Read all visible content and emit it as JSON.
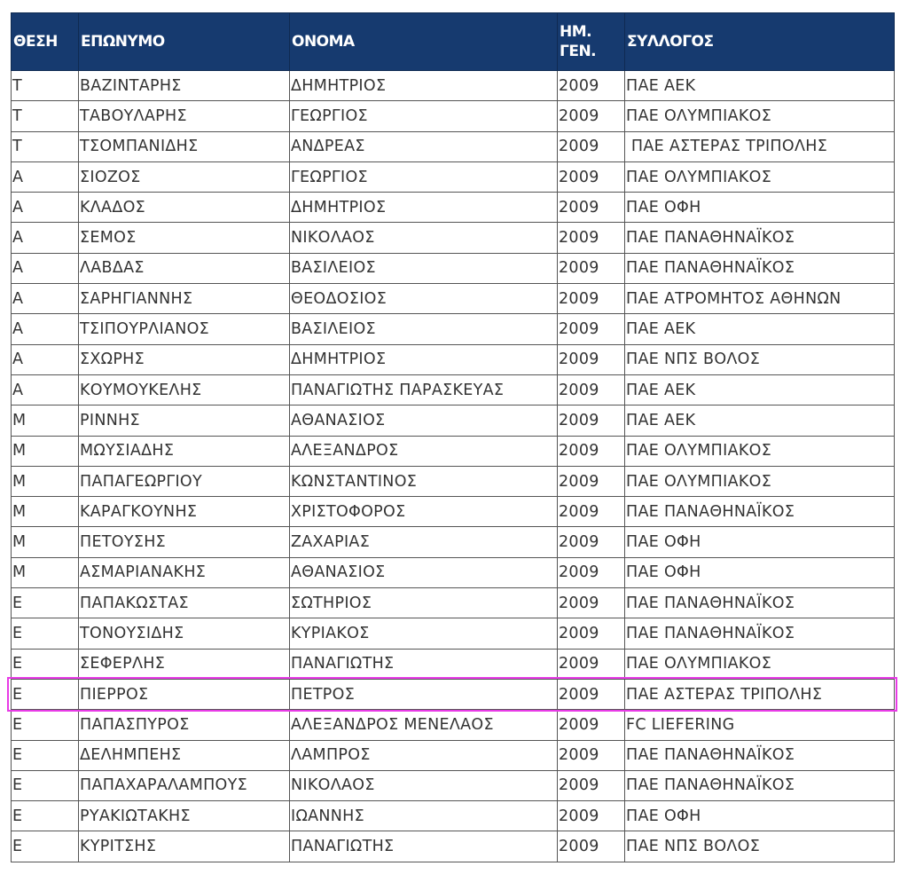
{
  "headers": [
    "ΘΕΣΗ",
    "ΕΠΩΝΥΜΟ",
    "ΟΝΟΜΑ",
    "ΗΜ.\nΓΕΝ.",
    "ΣΥΛΛΟΓΟΣ"
  ],
  "highlight_color": "#e83be6",
  "header_color": "#163a6f",
  "highlighted_row": 20,
  "rows": [
    [
      "Τ",
      "ΒΑΖΙΝΤΑΡΗΣ",
      "ΔΗΜΗΤΡΙΟΣ",
      "2009",
      "ΠΑΕ ΑΕΚ"
    ],
    [
      "Τ",
      "ΤΑΒΟΥΛΑΡΗΣ",
      "ΓΕΩΡΓΙΟΣ",
      "2009",
      "ΠΑΕ ΟΛΥΜΠΙΑΚΟΣ"
    ],
    [
      "Τ",
      "ΤΣΟΜΠΑΝΙΔΗΣ",
      "ΑΝΔΡΕΑΣ",
      "2009",
      " ΠΑΕ ΑΣΤΕΡΑΣ ΤΡΙΠΟΛΗΣ"
    ],
    [
      "Α",
      "ΣΙΟΖΟΣ",
      "ΓΕΩΡΓΙΟΣ",
      "2009",
      "ΠΑΕ ΟΛΥΜΠΙΑΚΟΣ"
    ],
    [
      "Α",
      "ΚΛΑΔΟΣ",
      "ΔΗΜΗΤΡΙΟΣ",
      "2009",
      "ΠΑΕ ΟΦΗ"
    ],
    [
      "Α",
      "ΣΕΜΟΣ",
      "ΝΙΚΟΛΑΟΣ",
      "2009",
      "ΠΑΕ ΠΑΝΑΘΗΝΑΪΚΟΣ"
    ],
    [
      "Α",
      "ΛΑΒΔΑΣ",
      "ΒΑΣΙΛΕΙΟΣ",
      "2009",
      "ΠΑΕ ΠΑΝΑΘΗΝΑΪΚΟΣ"
    ],
    [
      "Α",
      "ΣΑΡΗΓΙΑΝΝΗΣ",
      "ΘΕΟΔΟΣΙΟΣ",
      "2009",
      "ΠΑΕ ΑΤΡΟΜΗΤΟΣ ΑΘΗΝΩΝ"
    ],
    [
      "Α",
      "ΤΣΙΠΟΥΡΛΙΑΝΟΣ",
      "ΒΑΣΙΛΕΙΟΣ",
      "2009",
      "ΠΑΕ ΑΕΚ"
    ],
    [
      "Α",
      "ΣΧΩΡΗΣ",
      "ΔΗΜΗΤΡΙΟΣ",
      "2009",
      "ΠΑΕ ΝΠΣ ΒΟΛΟΣ"
    ],
    [
      "Α",
      "ΚΟΥΜΟΥΚΕΛΗΣ",
      "ΠΑΝΑΓΙΩΤΗΣ ΠΑΡΑΣΚΕΥΑΣ",
      "2009",
      "ΠΑΕ ΑΕΚ"
    ],
    [
      "Μ",
      "ΡΙΝΝΗΣ",
      "ΑΘΑΝΑΣΙΟΣ",
      "2009",
      "ΠΑΕ ΑΕΚ"
    ],
    [
      "Μ",
      "ΜΩΥΣΙΑΔΗΣ",
      "ΑΛΕΞΑΝΔΡΟΣ",
      "2009",
      "ΠΑΕ ΟΛΥΜΠΙΑΚΟΣ"
    ],
    [
      "Μ",
      "ΠΑΠΑΓΕΩΡΓΙΟΥ",
      "ΚΩΝΣΤΑΝΤΙΝΟΣ",
      "2009",
      "ΠΑΕ ΟΛΥΜΠΙΑΚΟΣ"
    ],
    [
      "Μ",
      "ΚΑΡΑΓΚΟΥΝΗΣ",
      "ΧΡΙΣΤΟΦΟΡΟΣ",
      "2009",
      "ΠΑΕ ΠΑΝΑΘΗΝΑΪΚΟΣ"
    ],
    [
      "Μ",
      "ΠΕΤΟΥΣΗΣ",
      "ΖΑΧΑΡΙΑΣ",
      "2009",
      "ΠΑΕ ΟΦΗ"
    ],
    [
      "Μ",
      "ΑΣΜΑΡΙΑΝΑΚΗΣ",
      "ΑΘΑΝΑΣΙΟΣ",
      "2009",
      "ΠΑΕ ΟΦΗ"
    ],
    [
      "Ε",
      "ΠΑΠΑΚΩΣΤΑΣ",
      "ΣΩΤΗΡΙΟΣ",
      "2009",
      "ΠΑΕ ΠΑΝΑΘΗΝΑΪΚΟΣ"
    ],
    [
      "Ε",
      "ΤΟΝΟΥΣΙΔΗΣ",
      "ΚΥΡΙΑΚΟΣ",
      "2009",
      "ΠΑΕ ΠΑΝΑΘΗΝΑΪΚΟΣ"
    ],
    [
      "Ε",
      "ΣΕΦΕΡΛΗΣ",
      "ΠΑΝΑΓΙΩΤΗΣ",
      "2009",
      "ΠΑΕ ΟΛΥΜΠΙΑΚΟΣ"
    ],
    [
      "Ε",
      "ΠΙΕΡΡΟΣ",
      "ΠΕΤΡΟΣ",
      "2009",
      "ΠΑΕ ΑΣΤΕΡΑΣ ΤΡΙΠΟΛΗΣ"
    ],
    [
      "Ε",
      "ΠΑΠΑΣΠΥΡΟΣ",
      "ΑΛΕΞΑΝΔΡΟΣ ΜΕΝΕΛΑΟΣ",
      "2009",
      "FC LIEFERING"
    ],
    [
      "Ε",
      "ΔΕΛΗΜΠΕΗΣ",
      "ΛΑΜΠΡΟΣ",
      "2009",
      "ΠΑΕ ΠΑΝΑΘΗΝΑΪΚΟΣ"
    ],
    [
      "Ε",
      "ΠΑΠΑΧΑΡΑΛΑΜΠΟΥΣ",
      "ΝΙΚΟΛΑΟΣ",
      "2009",
      "ΠΑΕ ΠΑΝΑΘΗΝΑΪΚΟΣ"
    ],
    [
      "Ε",
      "ΡΥΑΚΙΩΤΑΚΗΣ",
      "ΙΩΑΝΝΗΣ",
      "2009",
      "ΠΑΕ ΟΦΗ"
    ],
    [
      "Ε",
      "ΚΥΡΙΤΣΗΣ",
      "ΠΑΝΑΓΙΩΤΗΣ",
      "2009",
      "ΠΑΕ ΝΠΣ ΒΟΛΟΣ"
    ]
  ]
}
